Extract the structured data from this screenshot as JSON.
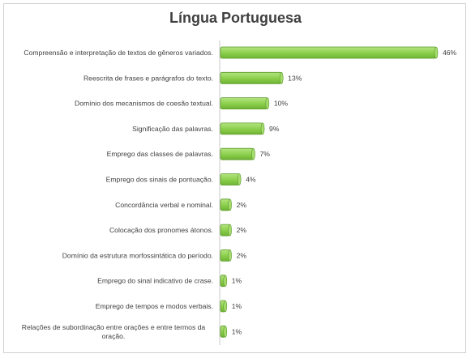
{
  "chart_data": {
    "type": "bar",
    "orientation": "horizontal",
    "title": "Língua Portuguesa",
    "categories": [
      "Compreensão e interpretação de textos de gêneros variados.",
      "Reescrita de frases e parágrafos do texto.",
      "Domínio dos mecanismos de coesão textual.",
      "Significação das palavras.",
      "Emprego das classes de palavras.",
      "Emprego dos sinais de pontuação.",
      "Concordância verbal e nominal.",
      "Colocação dos pronomes átonos.",
      "Domínio da estrutura morfossintática do período.",
      "Emprego do sinal indicativo de crase.",
      "Emprego de tempos e modos verbais.",
      "Relações de subordinação entre orações e entre termos da oração."
    ],
    "values": [
      46,
      13,
      10,
      9,
      7,
      4,
      2,
      2,
      2,
      1,
      1,
      1
    ],
    "value_labels": [
      "46%",
      "13%",
      "10%",
      "9%",
      "7%",
      "4%",
      "2%",
      "2%",
      "2%",
      "1%",
      "1%",
      "1%"
    ],
    "unit": "%",
    "xlim": [
      0,
      46
    ],
    "grid": false,
    "legend": "none",
    "colors": {
      "bar_fill": "#8ed14f",
      "bar_edge": "#5a9a2a",
      "axis": "#c8c8c8",
      "text": "#404040"
    }
  }
}
